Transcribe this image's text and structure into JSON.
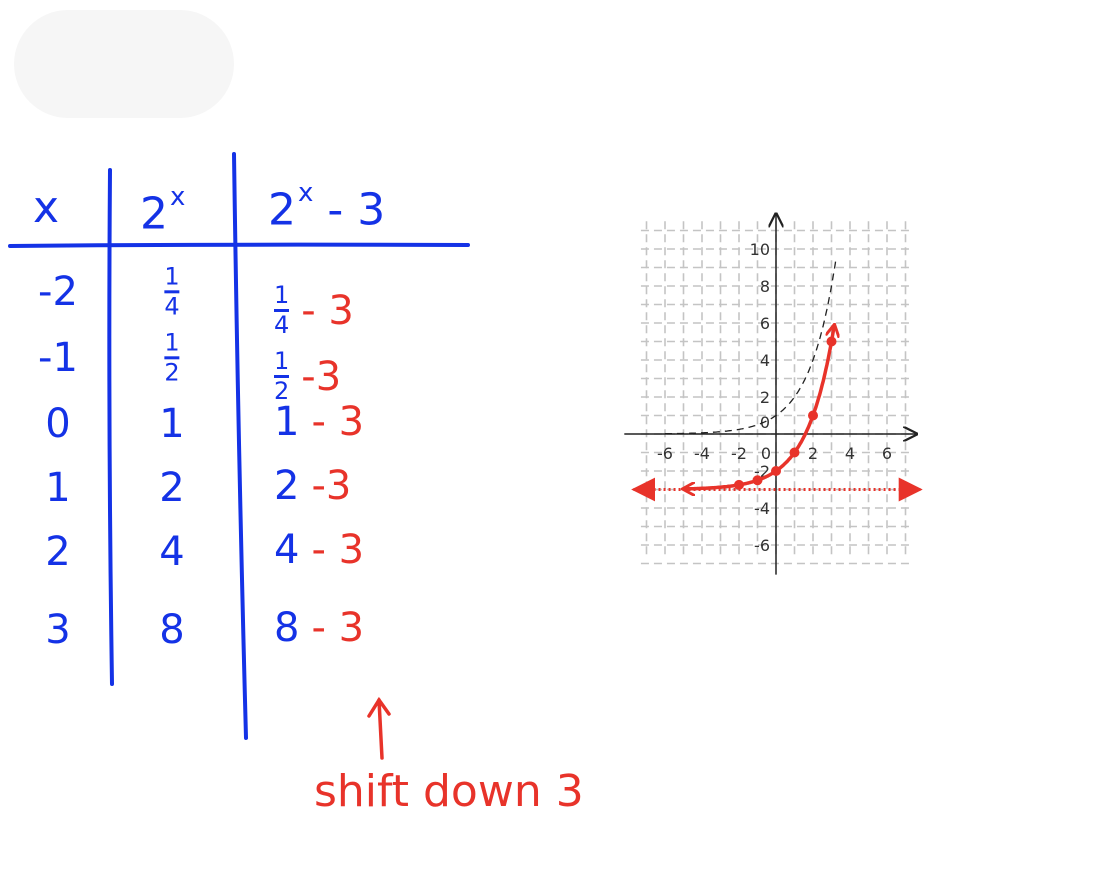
{
  "table": {
    "headers": [
      "x",
      "2",
      "x",
      "2",
      "x",
      "- 3"
    ],
    "rows": [
      {
        "x": "-2",
        "y_num": "1",
        "y_den": "4",
        "base_num": "1",
        "base_den": "4",
        "shift": "- 3",
        "frac": true
      },
      {
        "x": "-1",
        "y_num": "1",
        "y_den": "2",
        "base_num": "1",
        "base_den": "2",
        "shift": "-3",
        "frac": true
      },
      {
        "x": "0",
        "y": "1",
        "base": "1",
        "shift": "- 3",
        "frac": false
      },
      {
        "x": "1",
        "y": "2",
        "base": "2",
        "shift": "-3",
        "frac": false
      },
      {
        "x": "2",
        "y": "4",
        "base": "4",
        "shift": "- 3",
        "frac": false
      },
      {
        "x": "3",
        "y": "8",
        "base": "8",
        "shift": "- 3",
        "frac": false
      }
    ]
  },
  "annotation": "shift down 3",
  "chart_data": {
    "type": "line",
    "xlim": [
      -7,
      7
    ],
    "ylim": [
      -7,
      11
    ],
    "x_ticks": [
      "-6",
      "-4",
      "-2",
      "0",
      "2",
      "4",
      "6"
    ],
    "y_ticks": [
      "-6",
      "-4",
      "-2",
      "0",
      "2",
      "4",
      "6",
      "8",
      "10"
    ],
    "grid": true,
    "series": [
      {
        "style": "dashed",
        "color": "#222222",
        "function": "2^x",
        "x_range": [
          -6,
          3.25
        ]
      },
      {
        "style": "solid",
        "color": "#e8332a",
        "function": "2^x - 3",
        "x_range": [
          -5,
          3.15
        ],
        "points": [
          [
            -2,
            -2.75
          ],
          [
            -1,
            -2.5
          ],
          [
            0,
            -2
          ],
          [
            1,
            -1
          ],
          [
            2,
            1
          ],
          [
            3,
            5
          ]
        ]
      }
    ],
    "asymptote": {
      "y": -3,
      "style": "dotted",
      "color": "#e8332a"
    }
  }
}
